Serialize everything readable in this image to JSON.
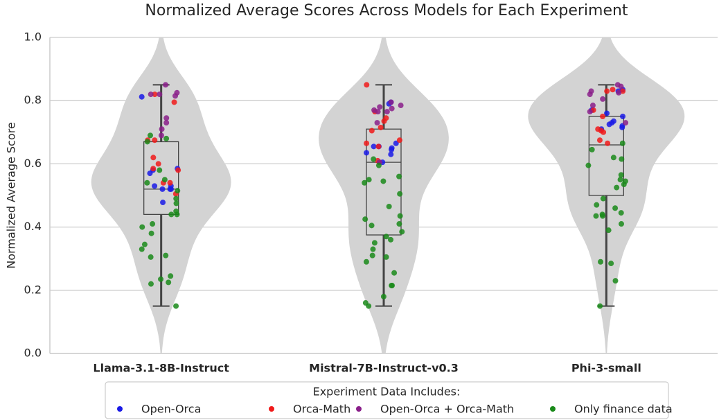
{
  "chart_data": {
    "type": "violin",
    "title": "Normalized Average Scores Across Models for Each Experiment",
    "ylabel": "Normalized Average Score",
    "categories": [
      "Llama-3.1-8B-Instruct",
      "Mistral-7B-Instruct-v0.3",
      "Phi-3-small"
    ],
    "ylim": [
      0,
      1
    ],
    "yticks": [
      {
        "value": 0,
        "label": "0.0"
      },
      0.2,
      0.4,
      0.6,
      0.8,
      {
        "value": 1,
        "label": "1.0"
      }
    ],
    "grid": true,
    "violin_color": "#d3d3d3",
    "box": [
      {
        "whislo": 0.15,
        "q1": 0.44,
        "med": 0.52,
        "q3": 0.67,
        "whishi": 0.85
      },
      {
        "whislo": 0.15,
        "q1": 0.375,
        "med": 0.605,
        "q3": 0.71,
        "whishi": 0.85
      },
      {
        "whislo": 0.15,
        "q1": 0.5,
        "med": 0.66,
        "q3": 0.75,
        "whishi": 0.85
      }
    ],
    "legend_title": "Experiment Data Includes:",
    "legend_loc": "lower center",
    "series": [
      {
        "name": "Open-Orca",
        "color": "#1a1ae6",
        "values": [
          [
            0.812,
            0.585,
            0.58,
            0.57,
            0.52,
            0.52,
            0.53,
            0.53,
            0.52,
            0.478
          ],
          [
            0.795,
            0.79,
            0.665,
            0.655,
            0.655,
            0.65,
            0.645,
            0.635,
            0.63,
            0.605
          ],
          [
            0.835,
            0.83,
            0.77,
            0.76,
            0.75,
            0.735,
            0.73,
            0.725,
            0.72,
            0.715,
            0.71
          ]
        ]
      },
      {
        "name": "Orca-Math",
        "color": "#f01a1a",
        "values": [
          [
            0.82,
            0.795,
            0.675,
            0.675,
            0.62,
            0.6,
            0.585,
            0.58,
            0.54,
            0.54,
            0.505
          ],
          [
            0.85,
            0.765,
            0.745,
            0.735,
            0.715,
            0.705,
            0.675,
            0.665,
            0.655,
            0.61
          ],
          [
            0.835,
            0.83,
            0.83,
            0.77,
            0.75,
            0.71,
            0.705,
            0.7,
            0.675,
            0.665
          ]
        ]
      },
      {
        "name": "Open-Orca + Orca-Math",
        "color": "#8a1f8a",
        "values": [
          [
            0.85,
            0.82,
            0.825,
            0.82,
            0.815,
            0.745,
            0.73,
            0.71,
            0.69
          ],
          [
            0.795,
            0.785,
            0.78,
            0.775,
            0.77,
            0.765,
            0.765,
            0.73,
            0.605
          ],
          [
            0.85,
            0.845,
            0.83,
            0.825,
            0.82,
            0.805,
            0.785,
            0.765,
            0.73
          ]
        ]
      },
      {
        "name": "Only finance data",
        "color": "#1a8a1a",
        "values": [
          [
            0.69,
            0.68,
            0.67,
            0.58,
            0.55,
            0.54,
            0.515,
            0.49,
            0.475,
            0.45,
            0.44,
            0.44,
            0.41,
            0.4,
            0.38,
            0.345,
            0.33,
            0.31,
            0.305,
            0.245,
            0.235,
            0.225,
            0.22,
            0.15
          ],
          [
            0.615,
            0.595,
            0.56,
            0.55,
            0.545,
            0.54,
            0.505,
            0.465,
            0.435,
            0.425,
            0.41,
            0.405,
            0.385,
            0.37,
            0.36,
            0.35,
            0.33,
            0.31,
            0.305,
            0.29,
            0.255,
            0.215,
            0.215,
            0.18,
            0.16,
            0.15
          ],
          [
            0.665,
            0.645,
            0.62,
            0.615,
            0.595,
            0.565,
            0.55,
            0.545,
            0.535,
            0.525,
            0.49,
            0.47,
            0.46,
            0.445,
            0.44,
            0.435,
            0.435,
            0.41,
            0.39,
            0.29,
            0.285,
            0.23,
            0.15
          ]
        ]
      }
    ]
  }
}
